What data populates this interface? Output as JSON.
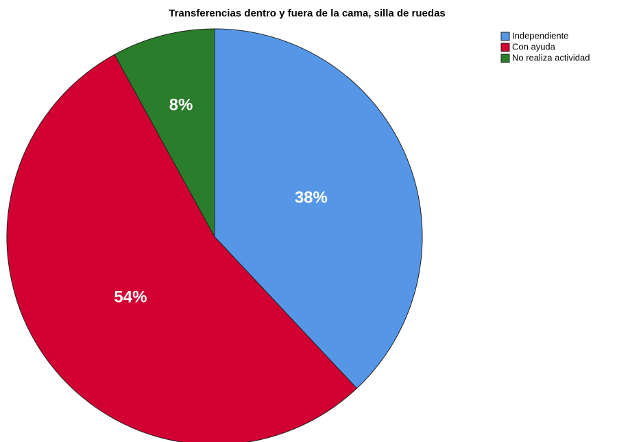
{
  "chart_data": {
    "type": "pie",
    "title": "Transferencias dentro y fuera de la cama, silla de ruedas",
    "categories": [
      "Independiente",
      "Con ayuda",
      "No realiza actividad"
    ],
    "values": [
      38,
      54,
      8
    ],
    "value_labels": [
      "38%",
      "54%",
      "8%"
    ],
    "colors": [
      "#5596e6",
      "#d20032",
      "#2a7d2a"
    ],
    "legend": "top-right"
  }
}
